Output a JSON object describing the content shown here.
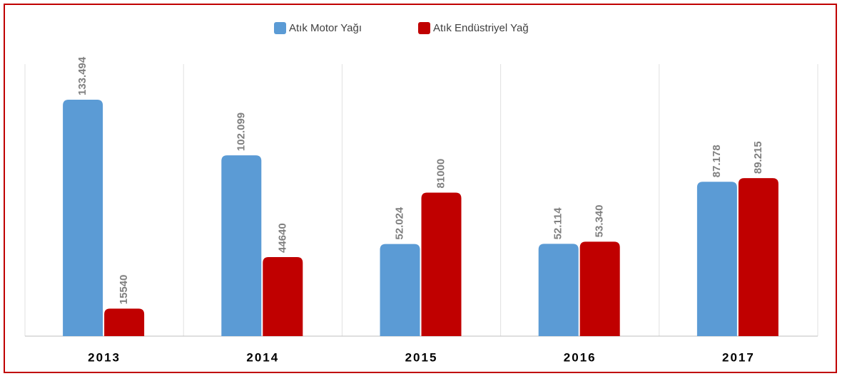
{
  "chart_data": {
    "type": "bar",
    "categories": [
      "2013",
      "2014",
      "2015",
      "2016",
      "2017"
    ],
    "series": [
      {
        "name": "Atık Motor Yağı",
        "color": "#5b9bd5",
        "values": [
          133494,
          102099,
          52024,
          52114,
          87178
        ],
        "value_labels": [
          "133.494",
          "102.099",
          "52.024",
          "52.114",
          "87.178"
        ]
      },
      {
        "name": "Atık Endüstriyel Yağ",
        "color": "#c00000",
        "values": [
          15540,
          44640,
          81000,
          53340,
          89215
        ],
        "value_labels": [
          "15540",
          "44640",
          "81000",
          "53.340",
          "89.215"
        ]
      }
    ],
    "legend": "top",
    "border_color": "#c00000"
  }
}
